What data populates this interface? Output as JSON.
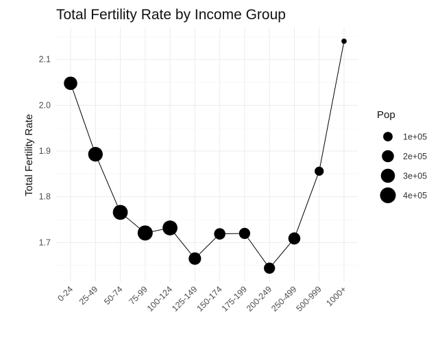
{
  "chart_data": {
    "type": "scatter",
    "title": "Total Fertility Rate by Income Group",
    "xlabel": "",
    "ylabel": "Total Fertility Rate",
    "categories": [
      "0-24",
      "25-49",
      "50-74",
      "75-99",
      "100-124",
      "125-149",
      "150-174",
      "175-199",
      "200-249",
      "250-499",
      "500-999",
      "1000+"
    ],
    "values": [
      2.048,
      1.893,
      1.766,
      1.721,
      1.732,
      1.665,
      1.719,
      1.72,
      1.644,
      1.709,
      1.856,
      2.14
    ],
    "pop": [
      300000,
      370000,
      390000,
      400000,
      390000,
      250000,
      200000,
      190000,
      190000,
      230000,
      110000,
      20000
    ],
    "yticks": [
      1.7,
      1.8,
      1.9,
      2.0,
      2.1
    ],
    "ylim": [
      1.615,
      2.17
    ],
    "connected_line": true,
    "grid": true,
    "point_color": "#000000",
    "legend": {
      "title": "Pop",
      "position": "right",
      "entries": [
        {
          "label": "1e+05",
          "value": 100000
        },
        {
          "label": "2e+05",
          "value": 200000
        },
        {
          "label": "3e+05",
          "value": 300000
        },
        {
          "label": "4e+05",
          "value": 400000
        }
      ]
    }
  }
}
